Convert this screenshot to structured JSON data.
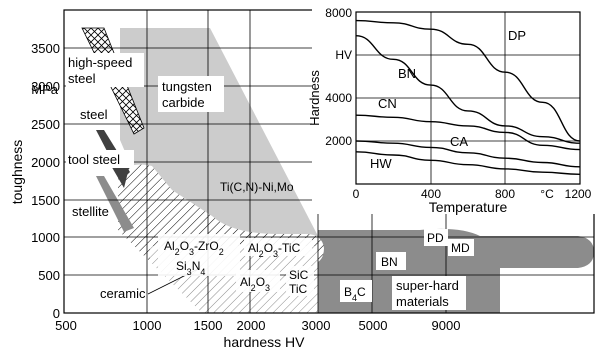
{
  "chart_data": [
    {
      "type": "region",
      "xlabel": "hardness HV",
      "ylabel": "toughness",
      "y_unit_label": "MPa",
      "x_ticks": [
        "500",
        "1000",
        "1500",
        "2000",
        "3000",
        "5000",
        "9000"
      ],
      "y_ticks": [
        "0",
        "500",
        "1000",
        "1500",
        "2000",
        "2500",
        "3000",
        "3500"
      ],
      "ylim": [
        0,
        3750
      ],
      "grid": true,
      "materials": [
        {
          "name": "high-speed steel",
          "label_lines": [
            "high-speed",
            "steel"
          ]
        },
        {
          "name": "steel",
          "label_lines": [
            "steel"
          ]
        },
        {
          "name": "tool steel",
          "label_lines": [
            "tool steel"
          ]
        },
        {
          "name": "stellite",
          "label_lines": [
            "stellite"
          ]
        },
        {
          "name": "tungsten carbide",
          "label_lines": [
            "tungsten",
            "carbide"
          ]
        },
        {
          "name": "Ti(C,N)-Ni,Mo",
          "label_lines": [
            "Ti(C,N)-Ni,Mo"
          ]
        },
        {
          "name": "ceramic",
          "label_lines": [
            "ceramic"
          ]
        },
        {
          "name": "Al2O3-ZrO2",
          "label_lines": [
            "Al2O3-ZrO2"
          ]
        },
        {
          "name": "Si3N4",
          "label_lines": [
            "Si3N4"
          ]
        },
        {
          "name": "Al2O3-TiC",
          "label_lines": [
            "Al2O3-TiC"
          ]
        },
        {
          "name": "Al2O3",
          "label_lines": [
            "Al2O3"
          ]
        },
        {
          "name": "SiC",
          "label_lines": [
            "SiC"
          ]
        },
        {
          "name": "TiC",
          "label_lines": [
            "TiC"
          ]
        },
        {
          "name": "B4C",
          "label_lines": [
            "B4C"
          ]
        },
        {
          "name": "BN",
          "label_lines": [
            "BN"
          ]
        },
        {
          "name": "PD",
          "label_lines": [
            "PD"
          ]
        },
        {
          "name": "MD",
          "label_lines": [
            "MD"
          ]
        },
        {
          "name": "super-hard materials",
          "label_lines": [
            "super-hard",
            "materials"
          ]
        }
      ],
      "colors": {
        "light_gray": "#cccccc",
        "mid_gray": "#8c8c8c",
        "dark_gray": "#404040",
        "hatch": "#000000"
      }
    },
    {
      "type": "line",
      "xlabel": "Temperature",
      "ylabel": "Hardness",
      "x_unit_label": "°C",
      "y_unit_label": "HV",
      "xlim": [
        0,
        1200
      ],
      "ylim": [
        0,
        8000
      ],
      "x_ticks": [
        "0",
        "400",
        "800",
        "1200"
      ],
      "y_ticks": [
        "2000",
        "4000",
        "6000",
        "8000"
      ],
      "grid": true,
      "series": [
        {
          "name": "DP",
          "x": [
            0,
            200,
            400,
            600,
            800,
            1000,
            1200
          ],
          "y": [
            7600,
            7500,
            7200,
            6500,
            5200,
            3800,
            2000
          ]
        },
        {
          "name": "BN",
          "x": [
            0,
            200,
            400,
            600,
            800,
            1000,
            1200
          ],
          "y": [
            6900,
            5800,
            4600,
            3400,
            2700,
            2200,
            1900
          ]
        },
        {
          "name": "CN",
          "x": [
            0,
            200,
            400,
            600,
            800,
            1000,
            1200
          ],
          "y": [
            3200,
            3100,
            2900,
            2700,
            2400,
            1800,
            1600
          ]
        },
        {
          "name": "CA",
          "x": [
            0,
            200,
            400,
            600,
            800,
            1000,
            1200
          ],
          "y": [
            2000,
            1900,
            1700,
            1450,
            1200,
            1000,
            800
          ]
        },
        {
          "name": "HW",
          "x": [
            0,
            200,
            400,
            600,
            800,
            1000,
            1200
          ],
          "y": [
            1500,
            1350,
            1100,
            900,
            700,
            550,
            450
          ]
        }
      ]
    }
  ]
}
